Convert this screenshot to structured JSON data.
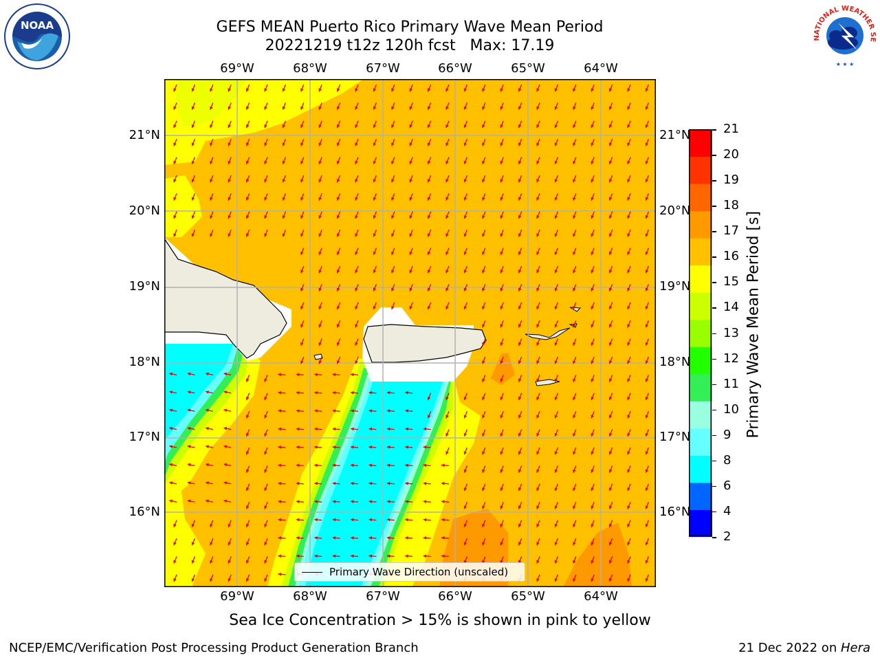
{
  "title": {
    "line1": "GEFS MEAN Puerto Rico Primary Wave Mean Period",
    "line2": "20221219 t12z 120h fcst   Max: 17.19"
  },
  "map": {
    "lon_ticks": [
      "69°W",
      "68°W",
      "67°W",
      "66°W",
      "65°W",
      "64°W"
    ],
    "lat_ticks": [
      "21°N",
      "20°N",
      "19°N",
      "18°N",
      "17°N",
      "16°N"
    ],
    "legend_label": "Primary Wave Direction (unscaled)",
    "arrow_color": "#e8000b",
    "land_color": "#eeecde",
    "grid_color": "#b0b0b0"
  },
  "colorbar": {
    "label": "Primary Wave Mean Period [s]",
    "ticks": [
      "21",
      "20",
      "19",
      "18",
      "17",
      "16",
      "15",
      "14",
      "13",
      "12",
      "11",
      "10",
      "9",
      "8",
      "6",
      "4",
      "2"
    ],
    "colors_bottom_to_top": [
      "#0000ff",
      "#0066ff",
      "#00ffff",
      "#66ffff",
      "#99ffe0",
      "#33ee55",
      "#22ff00",
      "#99ff00",
      "#ccff00",
      "#ffff00",
      "#ffc000",
      "#ff9900",
      "#ff6600",
      "#ff3300",
      "#ff0000"
    ]
  },
  "logos": {
    "noaa_text": "NOAA",
    "nws_text": "NATIONAL WEATHER SERVICE"
  },
  "note": "Sea Ice Concentration > 15% is shown in pink to yellow",
  "footer": {
    "left": "NCEP/EMC/Verification Post Processing Product Generation Branch",
    "right_date": "21 Dec 2022 on ",
    "right_machine": "Hera"
  }
}
